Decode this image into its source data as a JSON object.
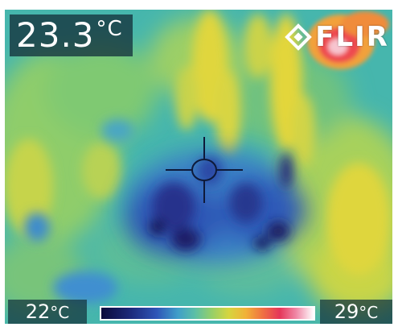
{
  "image": {
    "type": "thermal camera capture",
    "palette": "iron/rainbow thermal",
    "colors": {
      "background_cool": "#45b5b0",
      "cold_spot": "#0b0a3a",
      "warm_spot": "#f0d63a",
      "hot_spot": "#f0214a",
      "overlay_bg": "#14323c"
    }
  },
  "readout": {
    "value": "23.3",
    "unit": "°C"
  },
  "logo": {
    "text": "FLIR",
    "icon": "flir-diamond-icon"
  },
  "crosshair": {
    "icon": "crosshair-icon"
  },
  "scale": {
    "min_value": "22",
    "min_unit": "°C",
    "max_value": "29",
    "max_unit": "°C"
  }
}
